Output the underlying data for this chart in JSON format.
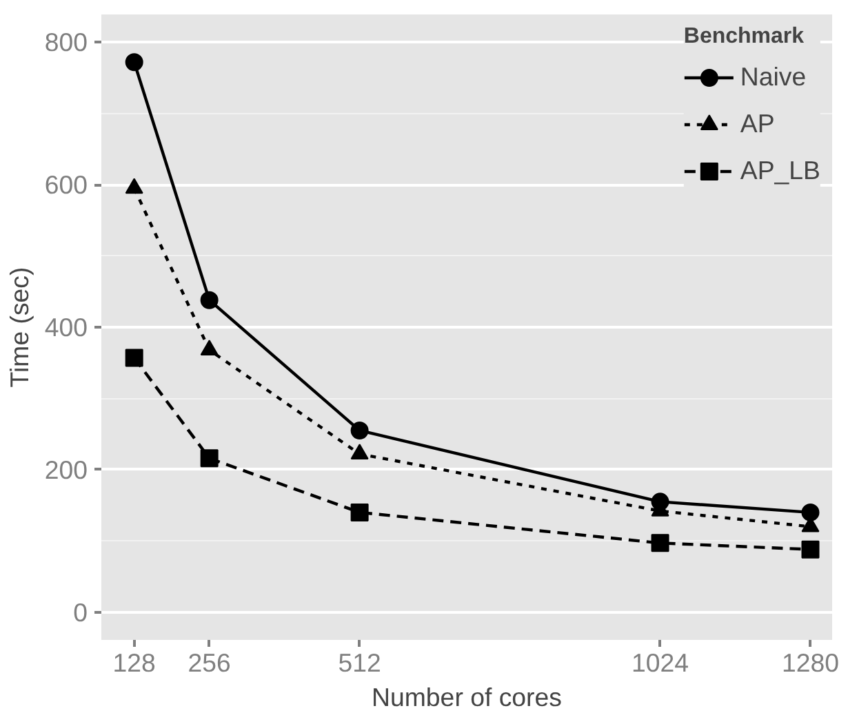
{
  "chart_data": {
    "type": "line",
    "xlabel": "Number of cores",
    "ylabel": "Time (sec)",
    "legend_title": "Benchmark",
    "x": [
      128,
      256,
      512,
      1024,
      1280
    ],
    "series": [
      {
        "name": "Naive",
        "color": "#000000",
        "marker": "circle",
        "line_style": "solid",
        "values": [
          772,
          438,
          255,
          155,
          140
        ]
      },
      {
        "name": "AP",
        "color": "#000000",
        "marker": "triangle",
        "line_style": "dotted",
        "values": [
          595,
          368,
          222,
          142,
          120
        ]
      },
      {
        "name": "AP_LB",
        "color": "#000000",
        "marker": "square",
        "line_style": "dashed",
        "values": [
          357,
          216,
          140,
          97,
          88
        ]
      }
    ],
    "xlim": [
      72,
      1317
    ],
    "ylim": [
      -39,
      839
    ],
    "xticks": [
      128,
      256,
      512,
      1024,
      1280
    ],
    "yticks": [
      0,
      200,
      400,
      600,
      800
    ],
    "grid": "y",
    "legend": "top right"
  }
}
